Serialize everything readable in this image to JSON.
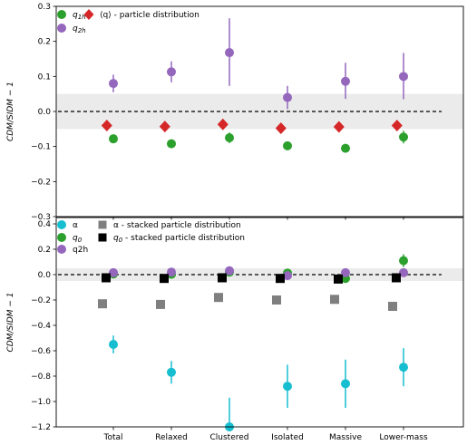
{
  "chart_data": [
    {
      "type": "scatter",
      "title": "",
      "ylabel": "CDM/SIDM − 1",
      "ylim": [
        -0.3,
        0.3
      ],
      "yticks": [
        "0.3",
        "0.2",
        "0.1",
        "0.0",
        "−0.1",
        "−0.2",
        "−0.3"
      ],
      "ytick_values": [
        0.3,
        0.2,
        0.1,
        0.0,
        -0.1,
        -0.2,
        -0.3
      ],
      "band": [
        -0.05,
        0.05
      ],
      "reference_line": 0.0,
      "grid": false,
      "legend_position": "top-left",
      "categories": [
        "Total",
        "Relaxed",
        "Clustered",
        "Isolated",
        "Massive",
        "Lower-mass"
      ],
      "series": [
        {
          "name": "q_{1h}",
          "label": "q",
          "sub": "1h",
          "marker": "circle",
          "color": "#2ca02c",
          "values": [
            -0.078,
            -0.092,
            -0.075,
            -0.098,
            -0.105,
            -0.073
          ],
          "err_low": [
            0.008,
            0.008,
            0.015,
            0.012,
            0.012,
            0.018
          ],
          "err_high": [
            0.008,
            0.008,
            0.015,
            0.012,
            0.012,
            0.018
          ],
          "offset": 0
        },
        {
          "name": "q_{2h}",
          "label": "q",
          "sub": "2h",
          "marker": "circle",
          "color": "#9467bd",
          "values": [
            0.08,
            0.113,
            0.168,
            0.04,
            0.086,
            0.1
          ],
          "err_low": [
            0.025,
            0.03,
            0.095,
            0.033,
            0.05,
            0.065
          ],
          "err_high": [
            0.025,
            0.03,
            0.098,
            0.033,
            0.053,
            0.067
          ],
          "offset": 0
        },
        {
          "name": "⟨q⟩ - particle distribution",
          "label": "⟨q⟩ - particle distribution",
          "sub": "",
          "marker": "diamond",
          "color": "#d62728",
          "values": [
            -0.04,
            -0.043,
            -0.037,
            -0.048,
            -0.044,
            -0.04
          ],
          "err_low": [
            0,
            0,
            0,
            0,
            0,
            0
          ],
          "err_high": [
            0,
            0,
            0,
            0,
            0,
            0
          ],
          "offset": -0.45
        }
      ]
    },
    {
      "type": "scatter",
      "title": "",
      "ylabel": "CDM/SIDM − 1",
      "ylim": [
        -1.2,
        0.45
      ],
      "yticks": [
        "0.4",
        "0.2",
        "0.0",
        "−0.2",
        "−0.4",
        "−0.6",
        "−0.8",
        "−1.0",
        "−1.2"
      ],
      "ytick_values": [
        0.4,
        0.2,
        0.0,
        -0.2,
        -0.4,
        -0.6,
        -0.8,
        -1.0,
        -1.2
      ],
      "band": [
        -0.05,
        0.05
      ],
      "reference_line": 0.0,
      "grid": false,
      "legend_position": "top-left",
      "categories": [
        "Total",
        "Relaxed",
        "Clustered",
        "Isolated",
        "Massive",
        "Lower-mass"
      ],
      "series": [
        {
          "name": "α",
          "label": "α",
          "sub": "",
          "marker": "circle",
          "color": "#17becf",
          "values": [
            -0.55,
            -0.77,
            -1.2,
            -0.88,
            -0.86,
            -0.73
          ],
          "err_low": [
            0.07,
            0.09,
            0.0,
            0.17,
            0.19,
            0.15
          ],
          "err_high": [
            0.07,
            0.09,
            0.23,
            0.17,
            0.19,
            0.15
          ],
          "offset": 0
        },
        {
          "name": "q_0",
          "label": "q",
          "sub": "0",
          "marker": "circle",
          "color": "#2ca02c",
          "values": [
            0.005,
            0.003,
            0.02,
            0.012,
            -0.03,
            0.11
          ],
          "err_low": [
            0.01,
            0.01,
            0.015,
            0.01,
            0.01,
            0.05
          ],
          "err_high": [
            0.01,
            0.01,
            0.015,
            0.01,
            0.01,
            0.05
          ],
          "offset": 0
        },
        {
          "name": "q2h",
          "label": "q2h",
          "sub": "",
          "marker": "circle",
          "color": "#9467bd",
          "values": [
            0.015,
            0.02,
            0.03,
            -0.008,
            0.015,
            0.015
          ],
          "err_low": [
            0.015,
            0.015,
            0.02,
            0.015,
            0.015,
            0.015
          ],
          "err_high": [
            0.015,
            0.015,
            0.02,
            0.015,
            0.015,
            0.015
          ],
          "offset": 0
        },
        {
          "name": "α - stacked particle distribution",
          "label": "α - stacked particle distribution",
          "sub": "",
          "marker": "square",
          "color": "#7f7f7f",
          "values": [
            -0.23,
            -0.235,
            -0.18,
            -0.2,
            -0.195,
            -0.25
          ],
          "err_low": [
            0,
            0,
            0,
            0,
            0,
            0
          ],
          "err_high": [
            0,
            0,
            0,
            0,
            0,
            0
          ],
          "offset": -0.75
        },
        {
          "name": "q_0 - stacked particle distribution",
          "label": "q",
          "sub": "0",
          "suffix": " - stacked particle distribution",
          "marker": "square",
          "color": "#000000",
          "values": [
            -0.025,
            -0.03,
            -0.025,
            -0.03,
            -0.035,
            -0.025
          ],
          "err_low": [
            0,
            0,
            0,
            0,
            0,
            0
          ],
          "err_high": [
            0,
            0,
            0,
            0,
            0,
            0
          ],
          "offset": -0.5
        }
      ]
    }
  ]
}
